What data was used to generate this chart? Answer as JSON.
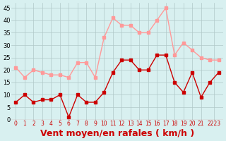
{
  "xlabel": "Vent moyen/en rafales ( km/h )",
  "x_labels": [
    "0",
    "1",
    "2",
    "3",
    "4",
    "5",
    "6",
    "7",
    "8",
    "9",
    "10",
    "11",
    "12",
    "13",
    "14",
    "15",
    "16",
    "17",
    "18",
    "19",
    "20",
    "21",
    "2223"
  ],
  "x_ticks": [
    0,
    1,
    2,
    3,
    4,
    5,
    6,
    7,
    8,
    9,
    10,
    11,
    12,
    13,
    14,
    15,
    16,
    17,
    18,
    19,
    20,
    21,
    22.5
  ],
  "avg_wind": [
    7,
    10,
    7,
    8,
    8,
    10,
    1,
    10,
    7,
    7,
    11,
    19,
    24,
    24,
    20,
    20,
    26,
    26,
    15,
    11,
    19,
    9,
    15,
    19
  ],
  "gust_wind": [
    21,
    17,
    20,
    19,
    18,
    18,
    17,
    23,
    23,
    17,
    33,
    41,
    38,
    38,
    35,
    35,
    40,
    45,
    26,
    31,
    28,
    25,
    24,
    24
  ],
  "avg_x": [
    0,
    1,
    2,
    3,
    4,
    5,
    6,
    7,
    8,
    9,
    10,
    11,
    12,
    13,
    14,
    15,
    16,
    17,
    18,
    19,
    20,
    21,
    22,
    23
  ],
  "avg_color": "#cc0000",
  "gust_color": "#ff9999",
  "bg_color": "#d8f0f0",
  "grid_color": "#b0c8c8",
  "ylim": [
    0,
    47
  ],
  "yticks": [
    0,
    5,
    10,
    15,
    20,
    25,
    30,
    35,
    40,
    45
  ],
  "xlabel_color": "#cc0000",
  "xlabel_fontsize": 9
}
